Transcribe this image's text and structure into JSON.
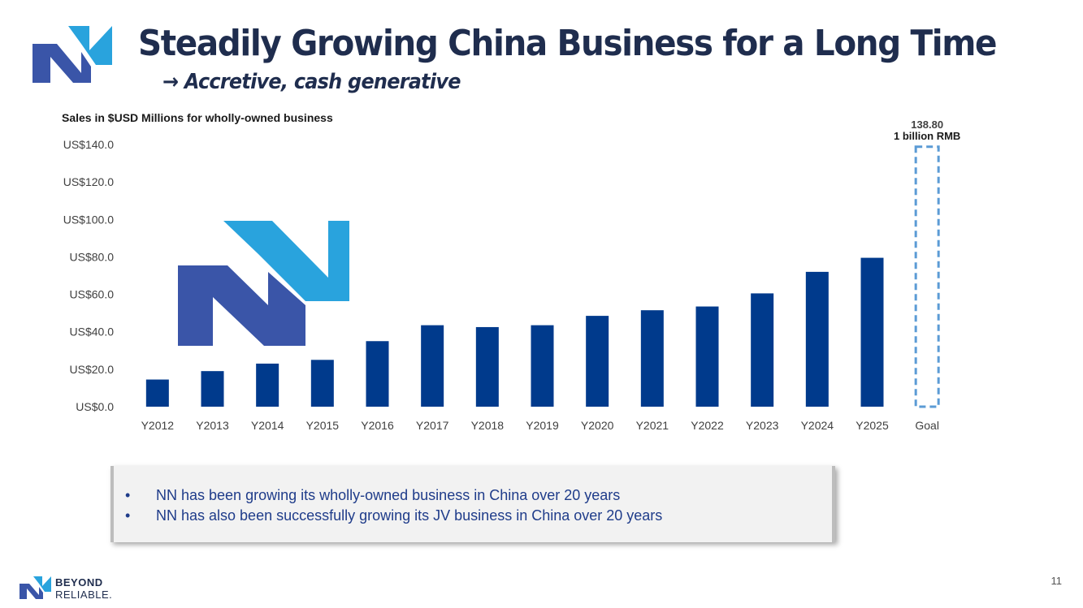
{
  "header": {
    "title": "Steadily Growing China Business for a Long Time",
    "subtitle": "→ Accretive, cash generative"
  },
  "chart_data": {
    "type": "bar",
    "title": "Sales in $USD Millions for wholly-owned business",
    "xlabel": "",
    "ylabel": "",
    "ylim": [
      0,
      140
    ],
    "yticks": [
      0,
      20,
      40,
      60,
      80,
      100,
      120,
      140
    ],
    "ytick_labels": [
      "US$0.0",
      "US$20.0",
      "US$40.0",
      "US$60.0",
      "US$80.0",
      "US$100.0",
      "US$120.0",
      "US$140.0"
    ],
    "categories": [
      "Y2012",
      "Y2013",
      "Y2014",
      "Y2015",
      "Y2016",
      "Y2017",
      "Y2018",
      "Y2019",
      "Y2020",
      "Y2021",
      "Y2022",
      "Y2023",
      "Y2024",
      "Y2025",
      "Goal"
    ],
    "values": [
      14.5,
      19,
      23,
      25,
      35,
      43.5,
      42.5,
      43.5,
      48.5,
      51.5,
      53.5,
      60.5,
      72,
      79.5,
      138.8
    ],
    "goal": {
      "category": "Goal",
      "value": 138.8,
      "value_label": "138.80",
      "annotation": "1 billion RMB",
      "style": "dashed-outline"
    },
    "colors": {
      "bar": "#003a8c",
      "goal_outline": "#5b9bd5",
      "axis_text": "#404040"
    },
    "grid": false
  },
  "bullets": [
    "NN has been growing its wholly-owned business in China over 20 years",
    "NN has also been successfully growing its JV business in China over 20 years"
  ],
  "bullet_glyph": "•",
  "footer": {
    "brand_line1": "BEYOND",
    "brand_line2": "RELIABLE.",
    "page_number": "11"
  },
  "colors": {
    "title": "#1f2d4e",
    "logo_light": "#29a3dd",
    "logo_dark": "#3a55a8",
    "bullet_text": "#1f3c8a"
  }
}
